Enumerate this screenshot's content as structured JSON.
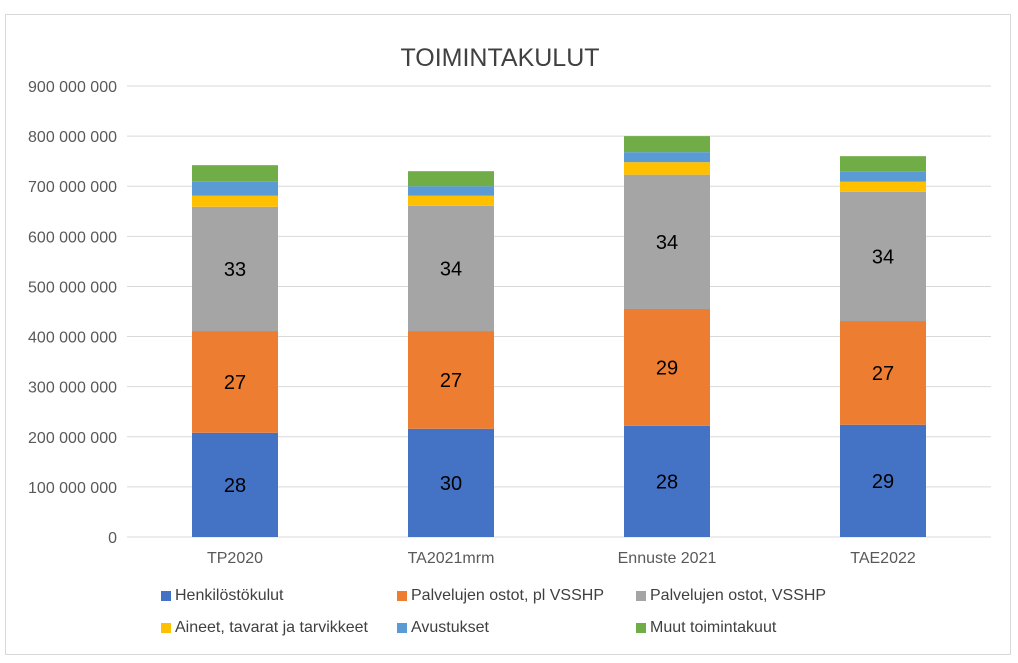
{
  "chart_data": {
    "type": "bar",
    "stacked": true,
    "title": "TOIMINTAKULUT",
    "xlabel": "",
    "ylabel": "",
    "ylim": [
      0,
      900000000
    ],
    "y_ticks": [
      0,
      100000000,
      200000000,
      300000000,
      400000000,
      500000000,
      600000000,
      700000000,
      800000000,
      900000000
    ],
    "y_tick_labels": [
      "0",
      "100 000 000",
      "200 000 000",
      "300 000 000",
      "400 000 000",
      "500 000 000",
      "600 000 000",
      "700 000 000",
      "800 000 000",
      "900 000 000"
    ],
    "grid": true,
    "legend_position": "bottom",
    "categories": [
      "TP2020",
      "TA2021mrm",
      "Ennuste 2021",
      "TAE2022"
    ],
    "series": [
      {
        "name": "Henkilöstökulut",
        "color": "#4472c4",
        "values": [
          208000000,
          216000000,
          222000000,
          224000000
        ],
        "data_labels": [
          "28",
          "30",
          "28",
          "29"
        ]
      },
      {
        "name": "Palvelujen ostot, pl VSSHP",
        "color": "#ed7d31",
        "values": [
          203000000,
          195000000,
          233000000,
          207000000
        ],
        "data_labels": [
          "27",
          "27",
          "29",
          "27"
        ]
      },
      {
        "name": "Palvelujen ostot, VSSHP",
        "color": "#a5a5a5",
        "values": [
          248000000,
          250000000,
          268000000,
          258000000
        ],
        "data_labels": [
          "33",
          "34",
          "34",
          "34"
        ]
      },
      {
        "name": "Aineet, tavarat ja tarvikkeet",
        "color": "#ffc000",
        "values": [
          22000000,
          20000000,
          25000000,
          20000000
        ],
        "data_labels": []
      },
      {
        "name": "Avustukset",
        "color": "#5b9bd5",
        "values": [
          28000000,
          19000000,
          20000000,
          20000000
        ],
        "data_labels": []
      },
      {
        "name": "Muut toimintakuut",
        "color": "#70ad47",
        "values": [
          33000000,
          30000000,
          32000000,
          31000000
        ],
        "data_labels": []
      }
    ]
  }
}
